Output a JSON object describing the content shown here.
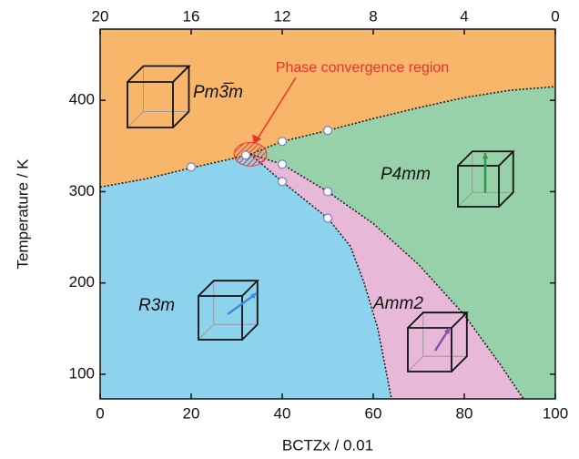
{
  "chart_data": {
    "type": "phase-diagram",
    "xlabel": "BCTZx / 0.01",
    "ylabel": "Temperature / K",
    "xlim": [
      0,
      100
    ],
    "xticks": [
      0,
      20,
      40,
      60,
      80,
      100
    ],
    "ylim": [
      73,
      478
    ],
    "yticks": [
      100,
      200,
      300,
      400
    ],
    "x2lim": [
      20,
      0
    ],
    "x2ticks": [
      20,
      16,
      12,
      8,
      4,
      0
    ],
    "annotation": "Phase convergence region",
    "phases": [
      {
        "name": "Pm3̅m",
        "color": "#f8b66b"
      },
      {
        "name": "P4mm",
        "color": "#97d1a9"
      },
      {
        "name": "R3m",
        "color": "#8ed3ee"
      },
      {
        "name": "Amm2",
        "color": "#e8b8d8"
      }
    ],
    "boundaries": [
      {
        "x": [
          0,
          10,
          20,
          28,
          33
        ],
        "y": [
          305,
          314,
          326,
          335,
          341
        ]
      },
      {
        "x": [
          33,
          40,
          50,
          60,
          70,
          80,
          90,
          100
        ],
        "y": [
          341,
          355,
          367,
          380,
          392,
          403,
          411,
          415
        ]
      },
      {
        "x": [
          33,
          40,
          50,
          55,
          58,
          61,
          64
        ],
        "y": [
          341,
          311,
          271,
          240,
          200,
          150,
          73
        ]
      },
      {
        "x": [
          33,
          40,
          50,
          60,
          70,
          80,
          88,
          93
        ],
        "y": [
          341,
          330,
          300,
          265,
          220,
          165,
          110,
          73
        ]
      }
    ],
    "points": {
      "x": [
        20,
        32,
        40,
        40,
        40,
        50,
        50,
        50
      ],
      "y": [
        327,
        340,
        355,
        330,
        311,
        367,
        300,
        271
      ]
    }
  }
}
